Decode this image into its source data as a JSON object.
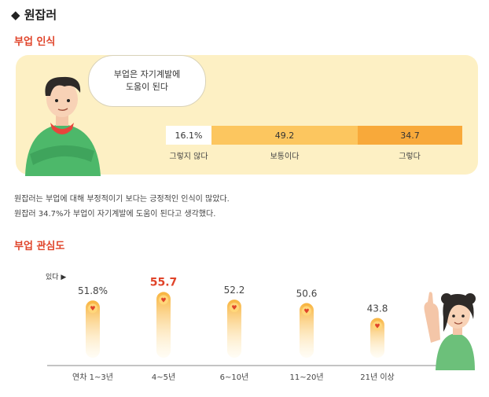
{
  "page_title": "◆ 원잡러",
  "section1": {
    "title": "부업 인식",
    "bubble_line1": "부업은 자기계발에",
    "bubble_line2": "도움이 된다",
    "segments": [
      {
        "label": "그렇지 않다",
        "value": 16.1,
        "text": "16.1%",
        "color": "#ffffff"
      },
      {
        "label": "보통이다",
        "value": 49.2,
        "text": "49.2",
        "color": "#fcc65f"
      },
      {
        "label": "그렇다",
        "value": 34.7,
        "text": "34.7",
        "color": "#f8a93a"
      }
    ],
    "desc_line1": "원잡러는 부업에 대해 부정적이기 보다는 긍정적인 인식이 많았다.",
    "desc_line2": "원잡러 34.7%가 부업이 자기계발에 도움이 된다고 생각했다."
  },
  "chart_data": {
    "type": "bar",
    "title": "부업 관심도",
    "legend_label": "있다 ▶",
    "categories": [
      "연차 1~3년",
      "4~5년",
      "6~10년",
      "11~20년",
      "21년 이상"
    ],
    "values": [
      51.8,
      55.7,
      52.2,
      50.6,
      43.8
    ],
    "value_labels": [
      "51.8%",
      "55.7",
      "52.2",
      "50.6",
      "43.8"
    ],
    "highlight_index": 1,
    "highlight_color": "#e0442a",
    "accent_color": "#f8a93a"
  }
}
